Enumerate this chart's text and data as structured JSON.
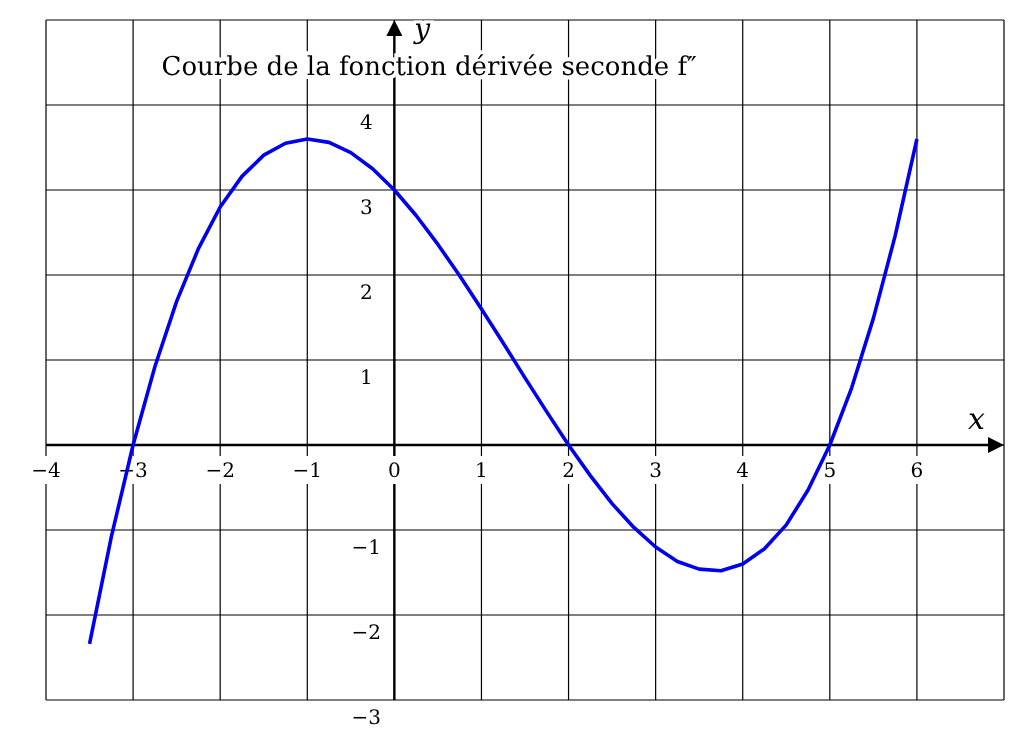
{
  "chart_data": {
    "type": "line",
    "title": "Courbe de la fonction dérivée seconde f″",
    "xlabel": "x",
    "ylabel": "y",
    "x": [
      -3.5,
      -3.25,
      -3,
      -2.75,
      -2.5,
      -2.25,
      -2,
      -1.75,
      -1.5,
      -1.25,
      -1,
      -0.75,
      -0.5,
      -0.25,
      0,
      0.25,
      0.5,
      0.75,
      1,
      1.25,
      1.5,
      1.75,
      2,
      2.25,
      2.5,
      2.75,
      3,
      3.25,
      3.5,
      3.75,
      4,
      4.25,
      4.5,
      4.75,
      5,
      5.25,
      5.5,
      5.75,
      6
    ],
    "series": [
      {
        "color": "#0000ee",
        "values": [
          -2.34,
          -1.08,
          0,
          0.92,
          1.69,
          2.31,
          2.8,
          3.16,
          3.41,
          3.55,
          3.6,
          3.56,
          3.44,
          3.25,
          3,
          2.7,
          2.36,
          1.99,
          1.6,
          1.2,
          0.79,
          0.39,
          0,
          -0.36,
          -0.69,
          -0.97,
          -1.2,
          -1.37,
          -1.46,
          -1.48,
          -1.4,
          -1.22,
          -0.94,
          -0.53,
          0,
          0.67,
          1.49,
          2.46,
          3.6
        ]
      }
    ],
    "xlim": [
      -4,
      7
    ],
    "ylim": [
      -3,
      5
    ],
    "xticks": [
      {
        "value": -4,
        "label": "−4"
      },
      {
        "value": -3,
        "label": "−3"
      },
      {
        "value": -2,
        "label": "−2"
      },
      {
        "value": -1,
        "label": "−1"
      },
      0,
      1,
      2,
      3,
      4,
      5,
      6
    ],
    "yticks": [
      {
        "value": -3,
        "label": "−3"
      },
      {
        "value": -2,
        "label": "−2"
      },
      {
        "value": -1,
        "label": "−1"
      },
      1,
      2,
      3,
      4
    ],
    "grid": true,
    "marker": "none",
    "line_style": "solid"
  }
}
